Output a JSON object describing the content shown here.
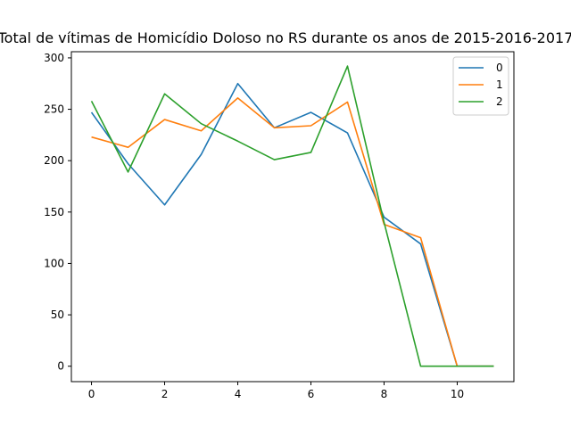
{
  "chart_data": {
    "type": "line",
    "title": "Total de vítimas de Homicídio Doloso no RS durante os anos de 2015-2016-2017",
    "xlabel": "",
    "ylabel": "",
    "x": [
      0,
      1,
      2,
      3,
      4,
      5,
      6,
      7,
      8,
      9,
      10,
      11
    ],
    "xlim": [
      -0.55,
      11.55
    ],
    "ylim": [
      -15,
      306
    ],
    "xticks": [
      "0",
      "2",
      "4",
      "6",
      "8",
      "10"
    ],
    "yticks": [
      "0",
      "50",
      "100",
      "150",
      "200",
      "250",
      "300"
    ],
    "grid": false,
    "legend": "top-right",
    "series": [
      {
        "name": "0",
        "color": "#1f77b4",
        "values": [
          247,
          197,
          157,
          206,
          275,
          232,
          247,
          227,
          145,
          119,
          0,
          0
        ]
      },
      {
        "name": "1",
        "color": "#ff7f0e",
        "values": [
          223,
          213,
          240,
          229,
          261,
          232,
          234,
          257,
          138,
          125,
          0,
          0
        ]
      },
      {
        "name": "2",
        "color": "#2ca02c",
        "values": [
          258,
          189,
          265,
          236,
          219,
          201,
          208,
          292,
          140,
          0,
          0,
          0
        ]
      }
    ]
  }
}
